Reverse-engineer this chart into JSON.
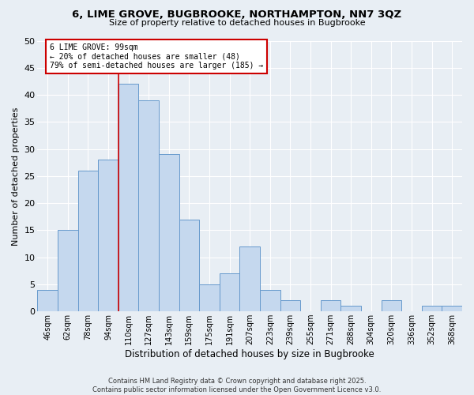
{
  "title": "6, LIME GROVE, BUGBROOKE, NORTHAMPTON, NN7 3QZ",
  "subtitle": "Size of property relative to detached houses in Bugbrooke",
  "xlabel": "Distribution of detached houses by size in Bugbrooke",
  "ylabel": "Number of detached properties",
  "footer_line1": "Contains HM Land Registry data © Crown copyright and database right 2025.",
  "footer_line2": "Contains public sector information licensed under the Open Government Licence v3.0.",
  "bins": [
    "46sqm",
    "62sqm",
    "78sqm",
    "94sqm",
    "110sqm",
    "127sqm",
    "143sqm",
    "159sqm",
    "175sqm",
    "191sqm",
    "207sqm",
    "223sqm",
    "239sqm",
    "255sqm",
    "271sqm",
    "288sqm",
    "304sqm",
    "320sqm",
    "336sqm",
    "352sqm",
    "368sqm"
  ],
  "values": [
    4,
    15,
    26,
    28,
    42,
    39,
    29,
    17,
    5,
    7,
    12,
    4,
    2,
    0,
    2,
    1,
    0,
    2,
    0,
    1,
    1
  ],
  "bar_color": "#c5d8ee",
  "bar_edge_color": "#6699cc",
  "annotation_line1": "6 LIME GROVE: 99sqm",
  "annotation_line2": "← 20% of detached houses are smaller (48)",
  "annotation_line3": "79% of semi-detached houses are larger (185) →",
  "property_line_x": 3.5,
  "ylim": [
    0,
    50
  ],
  "yticks": [
    0,
    5,
    10,
    15,
    20,
    25,
    30,
    35,
    40,
    45,
    50
  ],
  "bg_color": "#e8eef4",
  "grid_color": "#ffffff",
  "annotation_box_color": "#ffffff",
  "annotation_border_color": "#cc0000",
  "property_line_color": "#cc0000"
}
